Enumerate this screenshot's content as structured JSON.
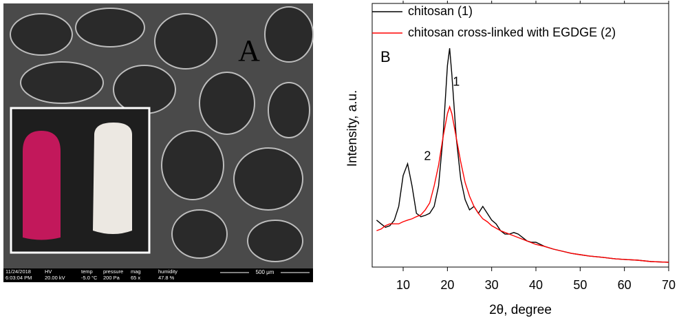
{
  "image_panel": {
    "label": "A",
    "info_bar": [
      {
        "head": "11/24/2018",
        "value": "6:03:04 PM"
      },
      {
        "head": "HV",
        "value": "20.00 kV"
      },
      {
        "head": "temp",
        "value": "-5.0 °C"
      },
      {
        "head": "pressure",
        "value": "200 Pa"
      },
      {
        "head": "mag",
        "value": "65 x"
      },
      {
        "head": "humidity",
        "value": "47.8 %"
      }
    ],
    "scale_bar": "500 μm"
  },
  "chart_data": {
    "type": "line",
    "panel_label": "B",
    "x_label": "2θ, degree",
    "y_label": "Intensity, a.u.",
    "xlim": [
      3,
      70
    ],
    "xticks": [
      10,
      20,
      30,
      40,
      50,
      60,
      70
    ],
    "ylim": [
      0,
      100
    ],
    "legend": "top-left",
    "annotations": [
      {
        "text": "1",
        "x": 22,
        "y": 70
      },
      {
        "text": "2",
        "x": 15.5,
        "y": 41.8
      }
    ],
    "series": [
      {
        "name": "chitosan (1)",
        "color": "#000000",
        "x": [
          4,
          5,
          6,
          7,
          8,
          9,
          10,
          11,
          12,
          13,
          14,
          15,
          16,
          17,
          18,
          19,
          20,
          20.5,
          21,
          22,
          23,
          24,
          25,
          26,
          27,
          28,
          29,
          30,
          31,
          32,
          33,
          34,
          35,
          36,
          37,
          38,
          39,
          40,
          42,
          44,
          46,
          48,
          50,
          52,
          55,
          58,
          60,
          63,
          66,
          70
        ],
        "values": [
          17.8,
          16.4,
          15.1,
          15.7,
          17.8,
          23.0,
          34.7,
          39.2,
          30.8,
          20.4,
          19.1,
          19.6,
          20.4,
          23.0,
          30.8,
          49.1,
          76.5,
          83.0,
          73.1,
          49.1,
          33.4,
          25.6,
          21.7,
          23.0,
          20.4,
          23.0,
          20.4,
          17.8,
          16.4,
          13.8,
          12.5,
          12.5,
          13.1,
          12.5,
          11.2,
          9.9,
          9.4,
          9.4,
          7.8,
          6.8,
          6.0,
          5.2,
          4.7,
          4.2,
          3.7,
          3.1,
          2.9,
          2.6,
          2.1,
          1.8
        ]
      },
      {
        "name": "chitosan cross-linked with EGDGE (2)",
        "color": "#ff0000",
        "x": [
          4,
          5,
          6,
          7,
          8,
          9,
          10,
          11,
          12,
          13,
          14,
          15,
          16,
          17,
          18,
          19,
          20,
          20.5,
          21,
          22,
          23,
          24,
          25,
          26,
          27,
          28,
          29,
          30,
          32,
          34,
          36,
          38,
          40,
          42,
          44,
          46,
          48,
          50,
          52,
          55,
          58,
          60,
          63,
          66,
          70
        ],
        "values": [
          13.8,
          14.4,
          15.7,
          16.4,
          16.4,
          16.4,
          17.2,
          17.8,
          18.3,
          19.1,
          19.8,
          21.7,
          24.3,
          30.8,
          38.6,
          49.1,
          58.2,
          60.8,
          58.2,
          49.1,
          39.9,
          32.1,
          26.9,
          23.0,
          20.4,
          18.3,
          17.2,
          15.7,
          13.8,
          12.5,
          11.2,
          9.9,
          8.6,
          7.8,
          6.8,
          6.0,
          5.2,
          4.7,
          4.2,
          3.7,
          3.1,
          2.9,
          2.6,
          2.1,
          1.8
        ]
      }
    ]
  }
}
